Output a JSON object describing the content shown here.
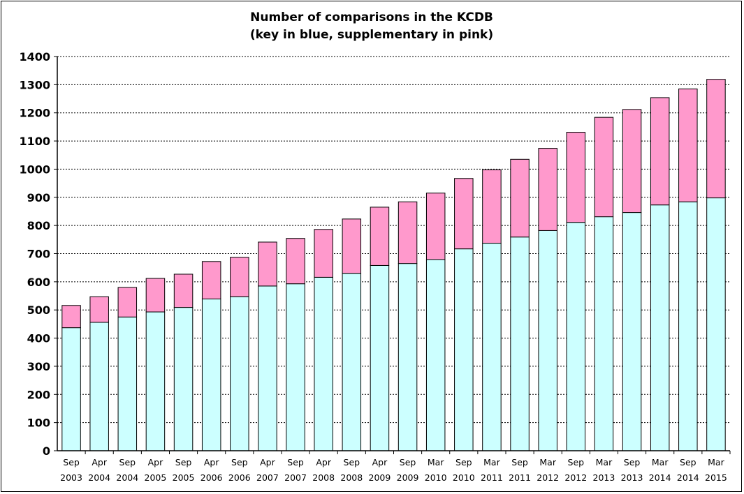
{
  "chart_data": {
    "type": "bar",
    "stacked": true,
    "title_line1": "Number of comparisons in the KCDB",
    "title_line2": "(key in blue, supplementary in pink)",
    "xlabel": "",
    "ylabel": "",
    "ylim": [
      0,
      1400
    ],
    "yticks": [
      0,
      100,
      200,
      300,
      400,
      500,
      600,
      700,
      800,
      900,
      1000,
      1100,
      1200,
      1300,
      1400
    ],
    "grid": true,
    "categories": [
      [
        "Sep",
        "2003"
      ],
      [
        "Apr",
        "2004"
      ],
      [
        "Sep",
        "2004"
      ],
      [
        "Apr",
        "2005"
      ],
      [
        "Sep",
        "2005"
      ],
      [
        "Apr",
        "2006"
      ],
      [
        "Sep",
        "2006"
      ],
      [
        "Apr",
        "2007"
      ],
      [
        "Sep",
        "2007"
      ],
      [
        "Apr",
        "2008"
      ],
      [
        "Sep",
        "2008"
      ],
      [
        "Apr",
        "2009"
      ],
      [
        "Sep",
        "2009"
      ],
      [
        "Mar",
        "2010"
      ],
      [
        "Sep",
        "2010"
      ],
      [
        "Mar",
        "2011"
      ],
      [
        "Sep",
        "2011"
      ],
      [
        "Mar",
        "2012"
      ],
      [
        "Sep",
        "2012"
      ],
      [
        "Mar",
        "2013"
      ],
      [
        "Sep",
        "2013"
      ],
      [
        "Mar",
        "2014"
      ],
      [
        "Sep",
        "2014"
      ],
      [
        "Mar",
        "2015"
      ]
    ],
    "series": [
      {
        "key": "key",
        "color": "#ccffff",
        "values": [
          437,
          456,
          475,
          493,
          509,
          539,
          547,
          585,
          593,
          616,
          630,
          658,
          665,
          679,
          717,
          737,
          759,
          782,
          811,
          831,
          846,
          873,
          884,
          898
        ]
      },
      {
        "key": "supplementary",
        "color": "#ff99cc",
        "values": [
          79,
          91,
          105,
          119,
          118,
          133,
          140,
          156,
          161,
          170,
          193,
          207,
          219,
          236,
          250,
          261,
          276,
          292,
          320,
          353,
          366,
          381,
          401,
          421
        ]
      }
    ]
  }
}
